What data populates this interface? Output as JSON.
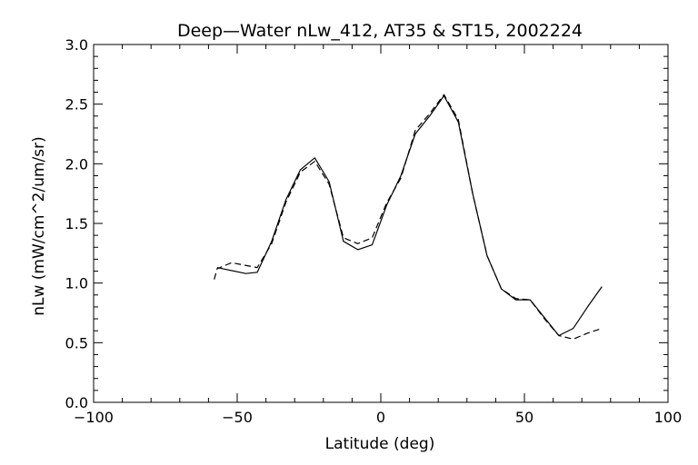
{
  "chart_data": {
    "type": "line",
    "title": "Deep—Water nLw_412, AT35 & ST15, 2002224",
    "xlabel": "Latitude (deg)",
    "ylabel": "nLw (mW/cm^2/um/sr)",
    "xlim": [
      -100,
      100
    ],
    "ylim": [
      0.0,
      3.0
    ],
    "x_ticks": [
      "−100",
      "−50",
      "0",
      "50",
      "100"
    ],
    "y_ticks": [
      "0.0",
      "0.5",
      "1.0",
      "1.5",
      "2.0",
      "2.5",
      "3.0"
    ],
    "grid": false,
    "series": [
      {
        "style": "solid",
        "x": [
          -57,
          -47,
          -43,
          -38,
          -33,
          -28,
          -23,
          -18,
          -13,
          -8,
          -3,
          2,
          7,
          12,
          17,
          22,
          27,
          32,
          37,
          42,
          47,
          52,
          57,
          62,
          67,
          72,
          77
        ],
        "y": [
          1.13,
          1.08,
          1.09,
          1.35,
          1.7,
          1.95,
          2.05,
          1.85,
          1.35,
          1.28,
          1.32,
          1.65,
          1.9,
          2.25,
          2.4,
          2.57,
          2.35,
          1.75,
          1.23,
          0.95,
          0.86,
          0.86,
          0.71,
          0.56,
          0.62,
          0.8,
          0.97
        ]
      },
      {
        "style": "dashed",
        "x": [
          -58,
          -57,
          -52,
          -43,
          -38,
          -33,
          -28,
          -23,
          -18,
          -13,
          -8,
          -3,
          2,
          7,
          12,
          17,
          22,
          27,
          32,
          37,
          42,
          47,
          52,
          57,
          62,
          67,
          72,
          77
        ],
        "y": [
          1.03,
          1.12,
          1.17,
          1.13,
          1.33,
          1.68,
          1.93,
          2.02,
          1.83,
          1.38,
          1.33,
          1.38,
          1.67,
          1.88,
          2.28,
          2.42,
          2.58,
          2.37,
          1.75,
          1.23,
          0.95,
          0.87,
          0.86,
          0.7,
          0.56,
          0.53,
          0.58,
          0.62
        ]
      }
    ]
  }
}
